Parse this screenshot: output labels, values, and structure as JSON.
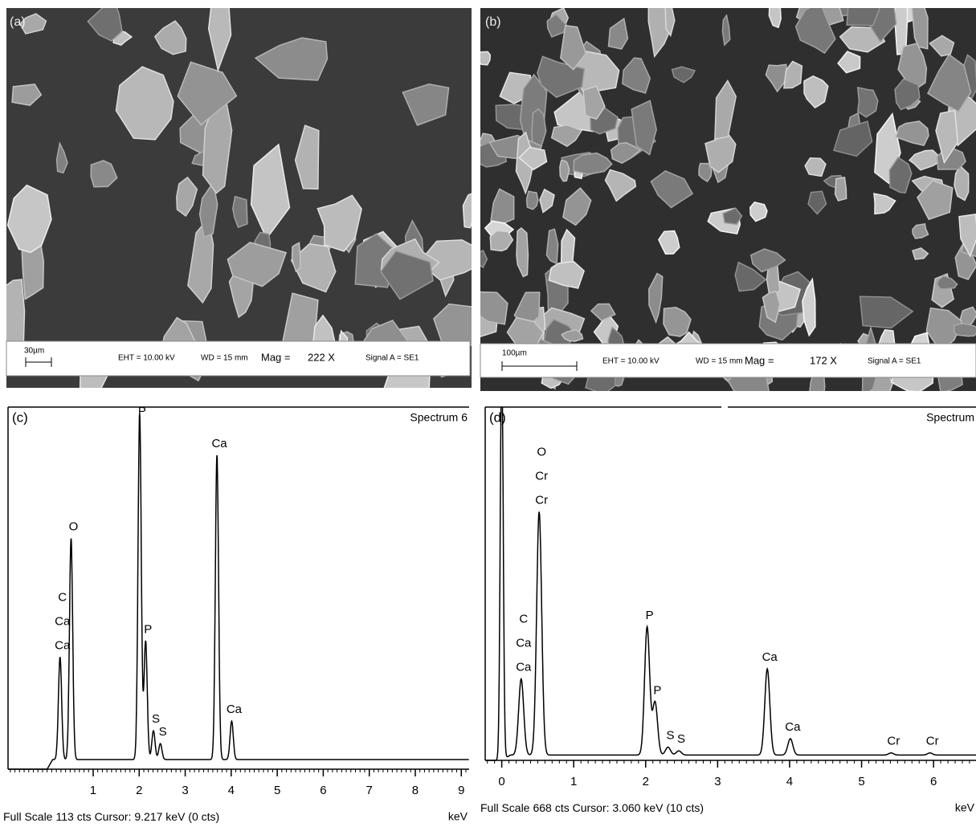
{
  "panels": [
    {
      "label": "(a)",
      "scale_bar": "30µm",
      "eht": "EHT = 10.00 kV",
      "wd": "WD =  15 mm",
      "mag_label": "Mag =",
      "mag": "222 X",
      "signal": "Signal A = SE1"
    },
    {
      "label": "(b)",
      "scale_bar": "100µm",
      "eht": "EHT = 10.00 kV",
      "wd": "WD =  15 mm",
      "mag_label": "Mag =",
      "mag": "172 X",
      "signal": "Signal A = SE1"
    }
  ],
  "spectra": [
    {
      "label": "(c)",
      "title": "Spectrum 6",
      "unit": "keV",
      "footer_prefix": "Full Scale",
      "full_scale": 113,
      "footer_suffix": "cts  Cursor: 9.217 keV (0 cts)",
      "xlim": [
        -0.85,
        9.17
      ],
      "xticks": [
        1,
        2,
        3,
        4,
        5,
        6,
        7,
        8,
        9
      ],
      "background": 3,
      "peaks": [
        {
          "x": 0.28,
          "height": 35,
          "labels": [
            "C",
            "Ca",
            "Ca"
          ]
        },
        {
          "x": 0.52,
          "height": 72,
          "labels": [
            "O"
          ]
        },
        {
          "x": 2.01,
          "height": 111,
          "labels": [
            "P"
          ]
        },
        {
          "x": 2.14,
          "height": 40,
          "labels": [
            "P"
          ]
        },
        {
          "x": 2.31,
          "height": 12,
          "labels": [
            "S"
          ]
        },
        {
          "x": 2.46,
          "height": 8,
          "labels": [
            "S"
          ]
        },
        {
          "x": 3.69,
          "height": 98,
          "labels": [
            "Ca"
          ]
        },
        {
          "x": 4.01,
          "height": 15,
          "labels": [
            "Ca"
          ]
        }
      ]
    },
    {
      "label": "(d)",
      "title": "Spectrum",
      "unit": "keV",
      "footer_prefix": "Full Scale",
      "full_scale": 668,
      "footer_suffix": "cts  Cursor: 3.060 keV (10 cts)",
      "xlim": [
        -0.23,
        6.59
      ],
      "xticks": [
        0,
        1,
        2,
        3,
        4,
        5,
        6
      ],
      "background": 10,
      "peaks": [
        {
          "x": 0.0,
          "height": 800,
          "labels": []
        },
        {
          "x": 0.27,
          "height": 154,
          "labels": [
            "C",
            "Ca",
            "Ca"
          ]
        },
        {
          "x": 0.52,
          "height": 470,
          "labels": [
            "O",
            "Cr",
            "Cr"
          ]
        },
        {
          "x": 2.02,
          "height": 252,
          "labels": [
            "P"
          ]
        },
        {
          "x": 2.13,
          "height": 110,
          "labels": [
            "P"
          ]
        },
        {
          "x": 2.31,
          "height": 25,
          "labels": [
            "S"
          ]
        },
        {
          "x": 2.46,
          "height": 18,
          "labels": [
            "S"
          ]
        },
        {
          "x": 3.69,
          "height": 173,
          "labels": [
            "Ca"
          ]
        },
        {
          "x": 4.01,
          "height": 41,
          "labels": [
            "Ca"
          ]
        },
        {
          "x": 5.41,
          "height": 14,
          "labels": [
            "Cr"
          ]
        },
        {
          "x": 5.95,
          "height": 14,
          "labels": [
            "Cr"
          ]
        }
      ]
    }
  ]
}
